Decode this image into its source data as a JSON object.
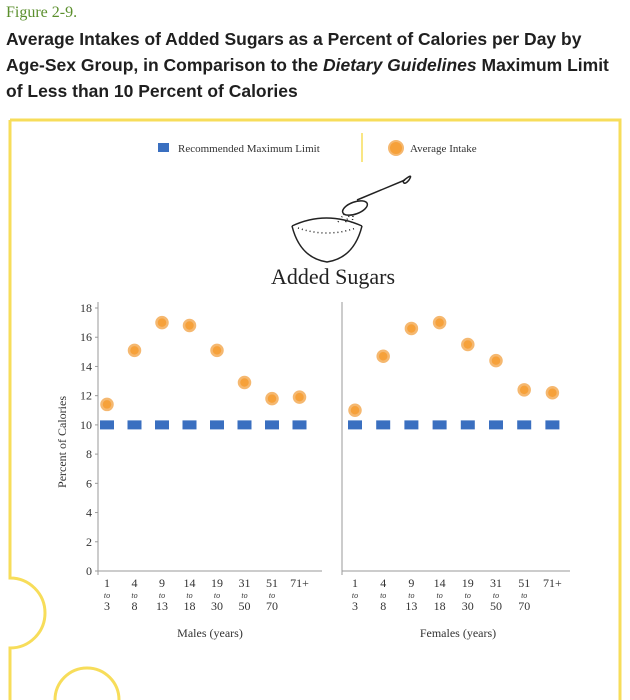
{
  "figure_label": "Figure 2-9.",
  "title": {
    "part1": "Average Intakes of Added Sugars as a Percent of Calories per Day by Age-Sex Group, in Comparison to the ",
    "emphasis": "Dietary Guidelines",
    "part2": " Maximum Limit of Less than 10 Percent of Calories"
  },
  "colors": {
    "frame": "#f7dd5a",
    "limit": "#3a6fc0",
    "intake_fill": "#f6a13a",
    "intake_ring": "#f5b870",
    "axis": "#9a9a9a",
    "text": "#333333"
  },
  "illustration": {
    "icon": "bowl-and-spoon-sugar-icon"
  },
  "chart_data": {
    "type": "scatter",
    "title": "Added Sugars",
    "ylabel": "Percent of Calories",
    "ylim": [
      0,
      18
    ],
    "yticks": [
      0,
      2,
      4,
      6,
      8,
      10,
      12,
      14,
      16,
      18
    ],
    "legend": {
      "position": "top-center",
      "items": [
        {
          "label": "Recommended Maximum Limit",
          "marker": "square"
        },
        {
          "label": "Average Intake",
          "marker": "circle"
        }
      ]
    },
    "categories": [
      {
        "start": "1",
        "to": "to",
        "end": "3"
      },
      {
        "start": "4",
        "to": "to",
        "end": "8"
      },
      {
        "start": "9",
        "to": "to",
        "end": "13"
      },
      {
        "start": "14",
        "to": "to",
        "end": "18"
      },
      {
        "start": "19",
        "to": "to",
        "end": "30"
      },
      {
        "start": "31",
        "to": "to",
        "end": "50"
      },
      {
        "start": "51",
        "to": "to",
        "end": "70"
      },
      {
        "start": "71+",
        "to": "",
        "end": ""
      }
    ],
    "panels": [
      {
        "xlabel": "Males (years)",
        "series": [
          {
            "name": "Recommended Maximum Limit",
            "values": [
              10,
              10,
              10,
              10,
              10,
              10,
              10,
              10
            ]
          },
          {
            "name": "Average Intake",
            "values": [
              11.4,
              15.1,
              17.0,
              16.8,
              15.1,
              12.9,
              11.8,
              11.9
            ]
          }
        ]
      },
      {
        "xlabel": "Females (years)",
        "series": [
          {
            "name": "Recommended Maximum Limit",
            "values": [
              10,
              10,
              10,
              10,
              10,
              10,
              10,
              10
            ]
          },
          {
            "name": "Average Intake",
            "values": [
              11.0,
              14.7,
              16.6,
              17.0,
              15.5,
              14.4,
              12.4,
              12.2
            ]
          }
        ]
      }
    ]
  }
}
